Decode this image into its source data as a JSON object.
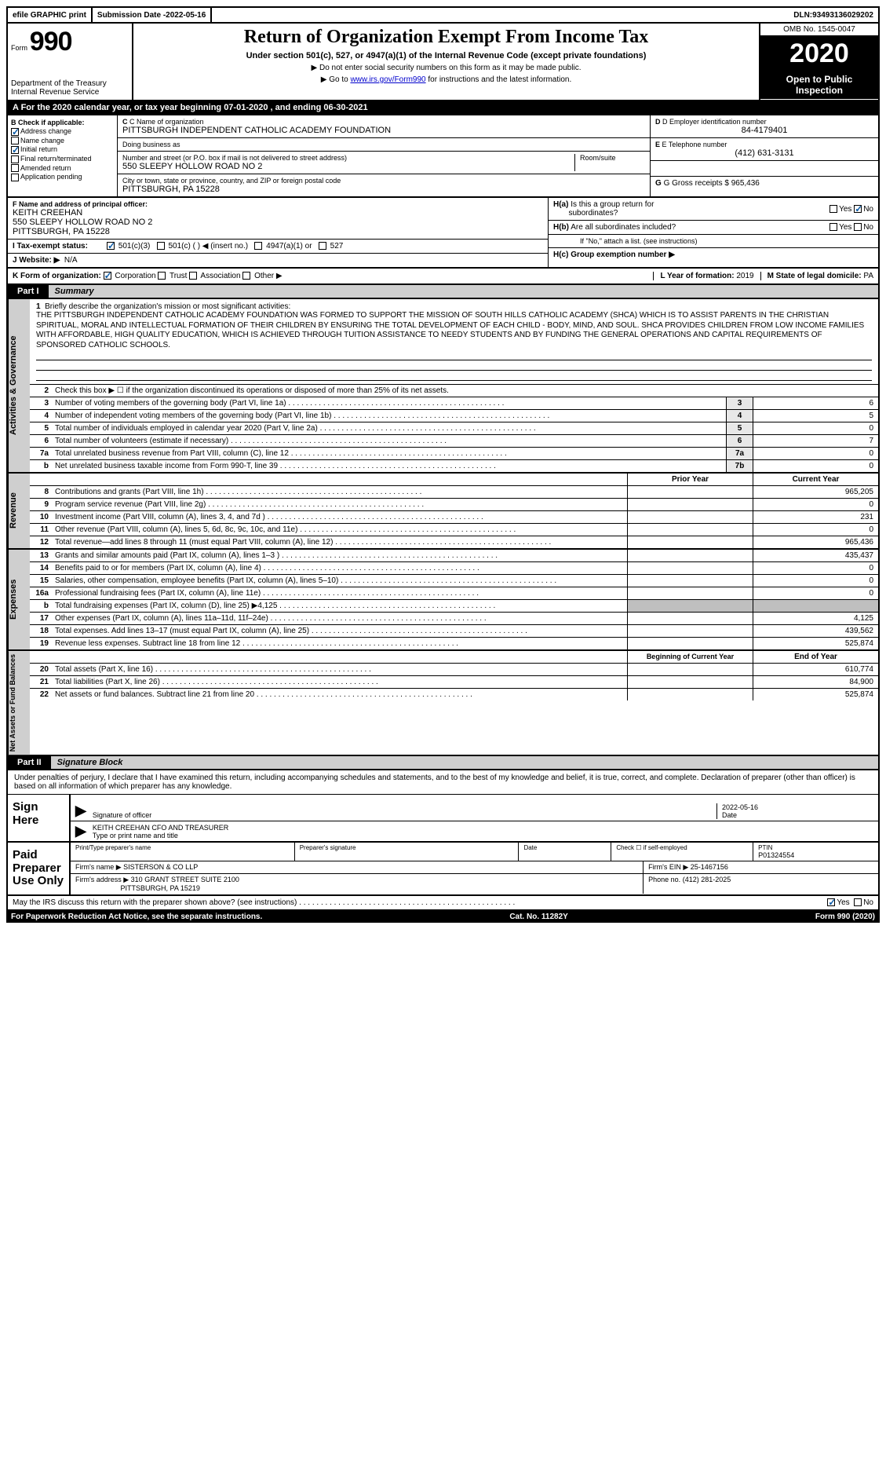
{
  "topbar": {
    "efile": "efile GRAPHIC print",
    "submission_label": "Submission Date - ",
    "submission_date": "2022-05-16",
    "dln_label": "DLN: ",
    "dln": "93493136029202"
  },
  "header": {
    "form_label": "Form",
    "form_num": "990",
    "dept": "Department of the Treasury\nInternal Revenue Service",
    "title": "Return of Organization Exempt From Income Tax",
    "subtitle": "Under section 501(c), 527, or 4947(a)(1) of the Internal Revenue Code (except private foundations)",
    "instr1": "▶ Do not enter social security numbers on this form as it may be made public.",
    "instr2_pre": "▶ Go to ",
    "instr2_link": "www.irs.gov/Form990",
    "instr2_post": " for instructions and the latest information.",
    "omb": "OMB No. 1545-0047",
    "year": "2020",
    "open": "Open to Public Inspection"
  },
  "period": "A  For the 2020 calendar year, or tax year beginning 07-01-2020   , and ending 06-30-2021",
  "boxB": {
    "label": "B Check if applicable:",
    "items": [
      {
        "label": "Address change",
        "checked": true
      },
      {
        "label": "Name change",
        "checked": false
      },
      {
        "label": "Initial return",
        "checked": true
      },
      {
        "label": "Final return/terminated",
        "checked": false
      },
      {
        "label": "Amended return",
        "checked": false
      },
      {
        "label": "Application pending",
        "checked": false
      }
    ]
  },
  "boxC": {
    "name_label": "C Name of organization",
    "name": "PITTSBURGH INDEPENDENT CATHOLIC ACADEMY FOUNDATION",
    "dba_label": "Doing business as",
    "dba": "",
    "addr_label": "Number and street (or P.O. box if mail is not delivered to street address)",
    "addr": "550 SLEEPY HOLLOW ROAD NO 2",
    "room_label": "Room/suite",
    "city_label": "City or town, state or province, country, and ZIP or foreign postal code",
    "city": "PITTSBURGH, PA  15228"
  },
  "boxD": {
    "label": "D Employer identification number",
    "val": "84-4179401"
  },
  "boxE": {
    "label": "E Telephone number",
    "val": "(412) 631-3131"
  },
  "boxG": {
    "label": "G Gross receipts $",
    "val": "965,436"
  },
  "boxF": {
    "label": "F  Name and address of principal officer:",
    "name": "KEITH CREEHAN",
    "addr1": "550 SLEEPY HOLLOW ROAD NO 2",
    "addr2": "PITTSBURGH, PA  15228"
  },
  "boxH": {
    "a_label": "H(a)  Is this a a group return for subordinates?",
    "a_yes": false,
    "a_no": true,
    "b_label": "H(b)  Are all subordinates included?",
    "b_yes": false,
    "b_no": false,
    "b_note": "If \"No,\" attach a list. (see instructions)",
    "c_label": "H(c)  Group exemption number ▶"
  },
  "boxI": {
    "label": "I   Tax-exempt status:",
    "opts": [
      "501(c)(3)",
      "501(c) (  ) ◀ (insert no.)",
      "4947(a)(1) or",
      "527"
    ],
    "checked_idx": 0
  },
  "boxJ": {
    "label": "J   Website: ▶",
    "val": "N/A"
  },
  "boxK": {
    "label": "K Form of organization:",
    "opts": [
      "Corporation",
      "Trust",
      "Association",
      "Other ▶"
    ],
    "checked_idx": 0
  },
  "boxL": {
    "label": "L Year of formation:",
    "val": "2019"
  },
  "boxM": {
    "label": "M State of legal domicile:",
    "val": "PA"
  },
  "part1": {
    "tab": "Part I",
    "title": "Summary"
  },
  "mission": {
    "num": "1",
    "label": "Briefly describe the organization's mission or most significant activities:",
    "text": "THE PITTSBURGH INDEPENDENT CATHOLIC ACADEMY FOUNDATION WAS FORMED TO SUPPORT THE MISSION OF SOUTH HILLS CATHOLIC ACADEMY (SHCA) WHICH IS TO ASSIST PARENTS IN THE CHRISTIAN SPIRITUAL, MORAL AND INTELLECTUAL FORMATION OF THEIR CHILDREN BY ENSURING THE TOTAL DEVELOPMENT OF EACH CHILD - BODY, MIND, AND SOUL. SHCA PROVIDES CHILDREN FROM LOW INCOME FAMILIES WITH AFFORDABLE, HIGH QUALITY EDUCATION, WHICH IS ACHIEVED THROUGH TUITION ASSISTANCE TO NEEDY STUDENTS AND BY FUNDING THE GENERAL OPERATIONS AND CAPITAL REQUIREMENTS OF SPONSORED CATHOLIC SCHOOLS."
  },
  "line2": {
    "num": "2",
    "text": "Check this box ▶ ☐  if the organization discontinued its operations or disposed of more than 25% of its net assets."
  },
  "gov_lines": [
    {
      "num": "3",
      "text": "Number of voting members of the governing body (Part VI, line 1a)",
      "box": "3",
      "val": "6"
    },
    {
      "num": "4",
      "text": "Number of independent voting members of the governing body (Part VI, line 1b)",
      "box": "4",
      "val": "5"
    },
    {
      "num": "5",
      "text": "Total number of individuals employed in calendar year 2020 (Part V, line 2a)",
      "box": "5",
      "val": "0"
    },
    {
      "num": "6",
      "text": "Total number of volunteers (estimate if necessary)",
      "box": "6",
      "val": "7"
    },
    {
      "num": "7a",
      "text": "Total unrelated business revenue from Part VIII, column (C), line 12",
      "box": "7a",
      "val": "0"
    },
    {
      "num": "b",
      "text": "Net unrelated business taxable income from Form 990-T, line 39",
      "box": "7b",
      "val": "0"
    }
  ],
  "col_heads": {
    "prior": "Prior Year",
    "current": "Current Year"
  },
  "rev_lines": [
    {
      "num": "8",
      "text": "Contributions and grants (Part VIII, line 1h)",
      "prior": "",
      "curr": "965,205"
    },
    {
      "num": "9",
      "text": "Program service revenue (Part VIII, line 2g)",
      "prior": "",
      "curr": "0"
    },
    {
      "num": "10",
      "text": "Investment income (Part VIII, column (A), lines 3, 4, and 7d )",
      "prior": "",
      "curr": "231"
    },
    {
      "num": "11",
      "text": "Other revenue (Part VIII, column (A), lines 5, 6d, 8c, 9c, 10c, and 11e)",
      "prior": "",
      "curr": "0"
    },
    {
      "num": "12",
      "text": "Total revenue—add lines 8 through 11 (must equal Part VIII, column (A), line 12)",
      "prior": "",
      "curr": "965,436"
    }
  ],
  "exp_lines": [
    {
      "num": "13",
      "text": "Grants and similar amounts paid (Part IX, column (A), lines 1–3 )",
      "prior": "",
      "curr": "435,437"
    },
    {
      "num": "14",
      "text": "Benefits paid to or for members (Part IX, column (A), line 4)",
      "prior": "",
      "curr": "0"
    },
    {
      "num": "15",
      "text": "Salaries, other compensation, employee benefits (Part IX, column (A), lines 5–10)",
      "prior": "",
      "curr": "0"
    },
    {
      "num": "16a",
      "text": "Professional fundraising fees (Part IX, column (A), line 11e)",
      "prior": "",
      "curr": "0"
    },
    {
      "num": "b",
      "text": "Total fundraising expenses (Part IX, column (D), line 25) ▶4,125",
      "prior": "shade",
      "curr": "shade"
    },
    {
      "num": "17",
      "text": "Other expenses (Part IX, column (A), lines 11a–11d, 11f–24e)",
      "prior": "",
      "curr": "4,125"
    },
    {
      "num": "18",
      "text": "Total expenses. Add lines 13–17 (must equal Part IX, column (A), line 25)",
      "prior": "",
      "curr": "439,562"
    },
    {
      "num": "19",
      "text": "Revenue less expenses. Subtract line 18 from line 12",
      "prior": "",
      "curr": "525,874"
    }
  ],
  "na_heads": {
    "begin": "Beginning of Current Year",
    "end": "End of Year"
  },
  "na_lines": [
    {
      "num": "20",
      "text": "Total assets (Part X, line 16)",
      "begin": "",
      "end": "610,774"
    },
    {
      "num": "21",
      "text": "Total liabilities (Part X, line 26)",
      "begin": "",
      "end": "84,900"
    },
    {
      "num": "22",
      "text": "Net assets or fund balances. Subtract line 21 from line 20",
      "begin": "",
      "end": "525,874"
    }
  ],
  "vtabs": {
    "gov": "Activities & Governance",
    "rev": "Revenue",
    "exp": "Expenses",
    "na": "Net Assets or Fund Balances"
  },
  "part2": {
    "tab": "Part II",
    "title": "Signature Block"
  },
  "sig": {
    "declaration": "Under penalties of perjury, I declare that I have examined this return, including accompanying schedules and statements, and to the best of my knowledge and belief, it is true, correct, and complete. Declaration of preparer (other than officer) is based on all information of which preparer has any knowledge.",
    "sign_here": "Sign Here",
    "sig_officer_label": "Signature of officer",
    "date_label": "Date",
    "sig_date": "2022-05-16",
    "officer_name": "KEITH CREEHAN  CFO AND TREASURER",
    "officer_name_label": "Type or print name and title"
  },
  "prep": {
    "label": "Paid Preparer Use Only",
    "cols": {
      "print_name": "Print/Type preparer's name",
      "signature": "Preparer's signature",
      "date": "Date",
      "self_emp_label": "Check ☐ if self-employed",
      "ptin_label": "PTIN",
      "ptin": "P01324554"
    },
    "firm_name_label": "Firm's name    ▶",
    "firm_name": "SISTERSON & CO LLP",
    "firm_ein_label": "Firm's EIN ▶",
    "firm_ein": "25-1467156",
    "firm_addr_label": "Firm's address ▶",
    "firm_addr1": "310 GRANT STREET SUITE 2100",
    "firm_addr2": "PITTSBURGH, PA  15219",
    "phone_label": "Phone no.",
    "phone": "(412) 281-2025"
  },
  "discuss": {
    "text": "May the IRS discuss this return with the preparer shown above? (see instructions)",
    "yes": true,
    "no": false
  },
  "footer": {
    "left": "For Paperwork Reduction Act Notice, see the separate instructions.",
    "mid": "Cat. No. 11282Y",
    "right": "Form 990 (2020)"
  }
}
